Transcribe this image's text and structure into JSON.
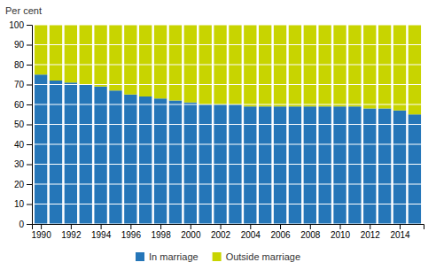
{
  "chart_data": {
    "type": "bar",
    "stacked": true,
    "ylabel": "Per cent",
    "x": [
      1990,
      1991,
      1992,
      1993,
      1994,
      1995,
      1996,
      1997,
      1998,
      1999,
      2000,
      2001,
      2002,
      2003,
      2004,
      2005,
      2006,
      2007,
      2008,
      2009,
      2010,
      2011,
      2012,
      2013,
      2014,
      2015
    ],
    "series": [
      {
        "name": "In marriage",
        "color": "#2576b8",
        "values": [
          75,
          72,
          71,
          70,
          69,
          67,
          65,
          64,
          63,
          62,
          61,
          60,
          60,
          60,
          59,
          59,
          59,
          59,
          59,
          59,
          59,
          59,
          58,
          58,
          57,
          55
        ]
      },
      {
        "name": "Outside marriage",
        "color": "#c8d400",
        "values": [
          25,
          28,
          29,
          30,
          31,
          33,
          35,
          36,
          37,
          38,
          39,
          40,
          40,
          40,
          41,
          41,
          41,
          41,
          41,
          41,
          41,
          41,
          42,
          42,
          43,
          45
        ]
      }
    ],
    "xlim": [
      1989.4,
      2015.6
    ],
    "xticks": [
      1990,
      1992,
      1994,
      1996,
      1998,
      2000,
      2002,
      2004,
      2006,
      2008,
      2010,
      2012,
      2014
    ],
    "ylim": [
      0,
      100
    ],
    "yticks": [
      0,
      10,
      20,
      30,
      40,
      50,
      60,
      70,
      80,
      90,
      100
    ],
    "grid": true,
    "legend": "bottom"
  }
}
